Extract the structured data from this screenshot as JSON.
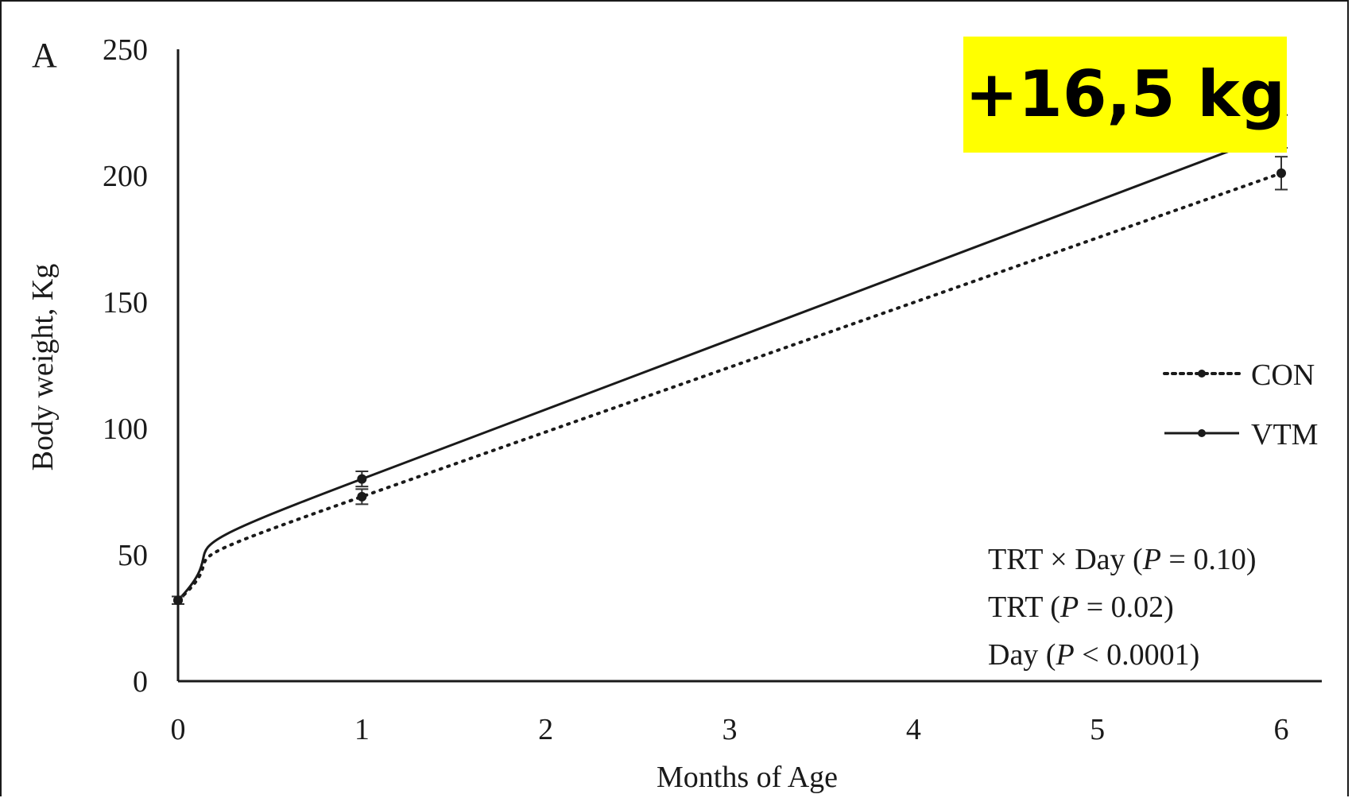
{
  "panel_label": "A",
  "annotation": {
    "text": "+16,5 kg",
    "background": "#ffff00",
    "color": "#000000"
  },
  "stats": [
    {
      "pre": "TRT × Day (",
      "p": "P",
      "post": " = 0.10)"
    },
    {
      "pre": "TRT (",
      "p": "P",
      "post": " = 0.02)"
    },
    {
      "pre": "Day (",
      "p": "P",
      "post": " < 0.0001)"
    }
  ],
  "chart_data": {
    "type": "line",
    "xlabel": "Months of Age",
    "ylabel": "Body weight, Kg",
    "xlim": [
      0,
      6
    ],
    "ylim": [
      0,
      250
    ],
    "xticks": [
      0,
      1,
      2,
      3,
      4,
      5,
      6
    ],
    "yticks": [
      0,
      50,
      100,
      150,
      200,
      250
    ],
    "grid": false,
    "legend_position": "right",
    "x": [
      0,
      1,
      6
    ],
    "series": [
      {
        "name": "CON",
        "style": "dotted",
        "color": "#1a1a1a",
        "values": [
          32,
          73,
          201
        ],
        "error": [
          1.5,
          3,
          6.5
        ]
      },
      {
        "name": "VTM",
        "style": "solid",
        "color": "#1a1a1a",
        "values": [
          32,
          80,
          217.5
        ],
        "error": [
          1.5,
          3,
          6.5
        ]
      }
    ]
  }
}
